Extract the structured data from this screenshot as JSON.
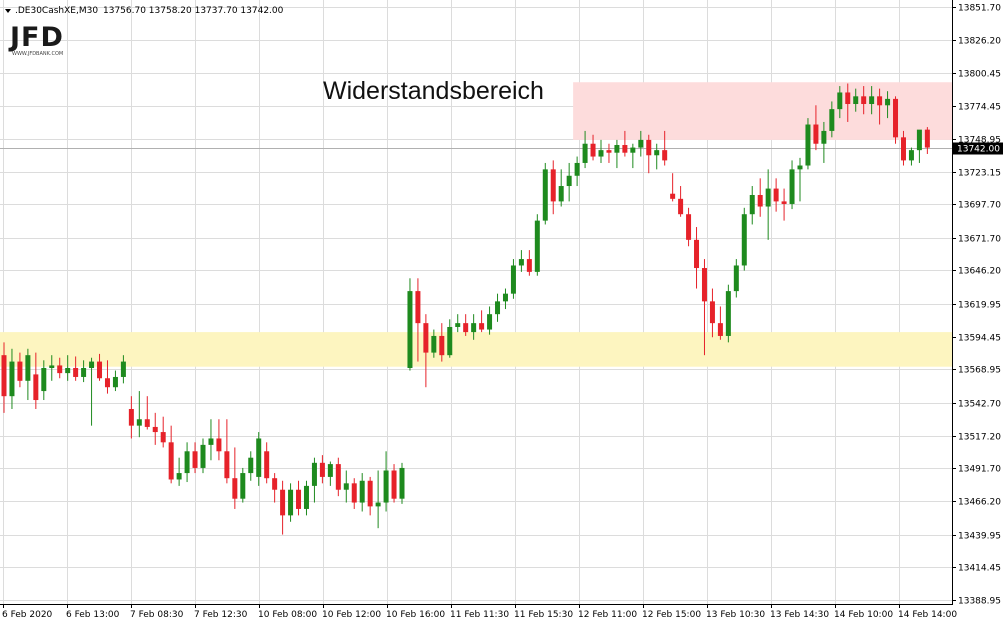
{
  "header": {
    "symbol": ".DE30CashXE,M30",
    "ohlc": "13756.70 13758.20 13737.70 13742.00"
  },
  "logo": {
    "text": "JFD",
    "sub": "WWW.JFDBANK.COM"
  },
  "colors": {
    "bull": "#1e8a1e",
    "bear": "#e6222a",
    "resistance_zone": "#fddcdc",
    "support_zone": "#fdf5c0",
    "grid": "#dcdcdc",
    "price_line": "#b0b0b0",
    "price_tag_bg": "#000000"
  },
  "chart_data": {
    "type": "candlestick",
    "timeframe": "M30",
    "y_range": [
      13380,
      13856
    ],
    "y_ticks": [
      "13851.70",
      "13826.20",
      "13800.45",
      "13774.45",
      "13748.95",
      "13723.15",
      "13697.70",
      "13671.70",
      "13646.20",
      "13619.95",
      "13594.45",
      "13568.95",
      "13542.70",
      "13517.20",
      "13491.70",
      "13466.20",
      "13439.95",
      "13414.45",
      "13388.95"
    ],
    "x_ticks": [
      "6 Feb 2020",
      "6 Feb 13:00",
      "7 Feb 08:30",
      "7 Feb 12:30",
      "10 Feb 08:00",
      "10 Feb 12:00",
      "10 Feb 16:00",
      "11 Feb 11:30",
      "11 Feb 15:30",
      "12 Feb 11:00",
      "12 Feb 15:00",
      "13 Feb 10:30",
      "13 Feb 14:30",
      "14 Feb 10:00",
      "14 Feb 14:00"
    ],
    "current_price": "13742.00",
    "zones": [
      {
        "label": "Widerstandsbereich",
        "from": 13748,
        "to": 13793,
        "start_index": 72,
        "color": "resistance"
      },
      {
        "label": "",
        "from": 13571,
        "to": 13598,
        "start_index": 0,
        "color": "support"
      }
    ],
    "candles": [
      [
        13580,
        13590,
        13535,
        13548
      ],
      [
        13548,
        13585,
        13538,
        13575
      ],
      [
        13575,
        13582,
        13555,
        13560
      ],
      [
        13560,
        13585,
        13545,
        13580
      ],
      [
        13565,
        13582,
        13538,
        13545
      ],
      [
        13552,
        13576,
        13545,
        13570
      ],
      [
        13570,
        13580,
        13560,
        13572
      ],
      [
        13572,
        13578,
        13562,
        13566
      ],
      [
        13566,
        13580,
        13560,
        13570
      ],
      [
        13570,
        13579,
        13560,
        13563
      ],
      [
        13563,
        13576,
        13559,
        13570
      ],
      [
        13570,
        13578,
        13525,
        13575
      ],
      [
        13575,
        13581,
        13560,
        13562
      ],
      [
        13562,
        13576,
        13550,
        13555
      ],
      [
        13555,
        13568,
        13552,
        13563
      ],
      [
        13563,
        13580,
        13558,
        13575
      ],
      [
        13538,
        13548,
        13515,
        13525
      ],
      [
        13525,
        13552,
        13516,
        13530
      ],
      [
        13530,
        13548,
        13522,
        13524
      ],
      [
        13524,
        13535,
        13510,
        13520
      ],
      [
        13520,
        13532,
        13508,
        13512
      ],
      [
        13512,
        13525,
        13480,
        13483
      ],
      [
        13483,
        13500,
        13478,
        13488
      ],
      [
        13488,
        13512,
        13481,
        13505
      ],
      [
        13505,
        13512,
        13488,
        13492
      ],
      [
        13492,
        13515,
        13488,
        13510
      ],
      [
        13510,
        13530,
        13498,
        13515
      ],
      [
        13515,
        13530,
        13498,
        13505
      ],
      [
        13505,
        13530,
        13480,
        13484
      ],
      [
        13484,
        13508,
        13460,
        13468
      ],
      [
        13468,
        13492,
        13465,
        13488
      ],
      [
        13488,
        13505,
        13482,
        13500
      ],
      [
        13485,
        13520,
        13478,
        13515
      ],
      [
        13505,
        13512,
        13480,
        13484
      ],
      [
        13484,
        13488,
        13465,
        13475
      ],
      [
        13475,
        13482,
        13440,
        13455
      ],
      [
        13455,
        13480,
        13450,
        13475
      ],
      [
        13475,
        13482,
        13455,
        13460
      ],
      [
        13460,
        13482,
        13455,
        13478
      ],
      [
        13478,
        13500,
        13465,
        13496
      ],
      [
        13496,
        13502,
        13480,
        13485
      ],
      [
        13485,
        13497,
        13478,
        13495
      ],
      [
        13495,
        13500,
        13470,
        13475
      ],
      [
        13475,
        13490,
        13465,
        13480
      ],
      [
        13480,
        13484,
        13460,
        13465
      ],
      [
        13465,
        13488,
        13458,
        13482
      ],
      [
        13482,
        13485,
        13455,
        13462
      ],
      [
        13462,
        13490,
        13445,
        13465
      ],
      [
        13465,
        13505,
        13458,
        13490
      ],
      [
        13490,
        13495,
        13465,
        13468
      ],
      [
        13468,
        13496,
        13464,
        13492
      ],
      [
        13570,
        13640,
        13568,
        13630
      ],
      [
        13630,
        13640,
        13575,
        13605
      ],
      [
        13605,
        13612,
        13555,
        13582
      ],
      [
        13582,
        13600,
        13578,
        13595
      ],
      [
        13595,
        13605,
        13575,
        13580
      ],
      [
        13580,
        13608,
        13578,
        13602
      ],
      [
        13602,
        13612,
        13598,
        13605
      ],
      [
        13605,
        13612,
        13595,
        13598
      ],
      [
        13598,
        13612,
        13592,
        13605
      ],
      [
        13605,
        13615,
        13598,
        13600
      ],
      [
        13600,
        13618,
        13596,
        13612
      ],
      [
        13612,
        13628,
        13606,
        13622
      ],
      [
        13622,
        13632,
        13616,
        13628
      ],
      [
        13628,
        13655,
        13624,
        13650
      ],
      [
        13650,
        13662,
        13645,
        13655
      ],
      [
        13655,
        13662,
        13642,
        13645
      ],
      [
        13645,
        13690,
        13642,
        13685
      ],
      [
        13685,
        13730,
        13682,
        13725
      ],
      [
        13725,
        13732,
        13690,
        13700
      ],
      [
        13700,
        13725,
        13696,
        13712
      ],
      [
        13712,
        13730,
        13700,
        13720
      ],
      [
        13720,
        13735,
        13712,
        13730
      ],
      [
        13730,
        13755,
        13726,
        13745
      ],
      [
        13745,
        13752,
        13732,
        13735
      ],
      [
        13735,
        13748,
        13730,
        13740
      ],
      [
        13740,
        13745,
        13730,
        13738
      ],
      [
        13738,
        13748,
        13726,
        13744
      ],
      [
        13744,
        13755,
        13735,
        13738
      ],
      [
        13738,
        13745,
        13726,
        13742
      ],
      [
        13742,
        13755,
        13735,
        13748
      ],
      [
        13748,
        13752,
        13722,
        13736
      ],
      [
        13736,
        13745,
        13725,
        13740
      ],
      [
        13740,
        13755,
        13728,
        13732
      ],
      [
        13706,
        13722,
        13700,
        13702
      ],
      [
        13702,
        13712,
        13688,
        13690
      ],
      [
        13690,
        13695,
        13665,
        13670
      ],
      [
        13670,
        13680,
        13632,
        13648
      ],
      [
        13648,
        13655,
        13580,
        13622
      ],
      [
        13622,
        13632,
        13594,
        13605
      ],
      [
        13605,
        13618,
        13592,
        13595
      ],
      [
        13595,
        13635,
        13590,
        13630
      ],
      [
        13630,
        13655,
        13625,
        13650
      ],
      [
        13650,
        13695,
        13646,
        13690
      ],
      [
        13690,
        13712,
        13682,
        13705
      ],
      [
        13705,
        13718,
        13688,
        13696
      ],
      [
        13696,
        13725,
        13670,
        13710
      ],
      [
        13710,
        13718,
        13692,
        13700
      ],
      [
        13700,
        13710,
        13685,
        13698
      ],
      [
        13698,
        13732,
        13694,
        13725
      ],
      [
        13725,
        13734,
        13700,
        13728
      ],
      [
        13728,
        13765,
        13725,
        13760
      ],
      [
        13760,
        13775,
        13740,
        13745
      ],
      [
        13745,
        13762,
        13730,
        13755
      ],
      [
        13755,
        13778,
        13750,
        13772
      ],
      [
        13772,
        13790,
        13765,
        13785
      ],
      [
        13785,
        13792,
        13762,
        13776
      ],
      [
        13776,
        13788,
        13770,
        13782
      ],
      [
        13782,
        13790,
        13768,
        13776
      ],
      [
        13776,
        13790,
        13768,
        13782
      ],
      [
        13782,
        13788,
        13760,
        13775
      ],
      [
        13775,
        13786,
        13765,
        13780
      ],
      [
        13780,
        13782,
        13745,
        13750
      ],
      [
        13750,
        13755,
        13728,
        13732
      ],
      [
        13732,
        13742,
        13728,
        13740
      ],
      [
        13740,
        13755,
        13730,
        13756
      ],
      [
        13756,
        13758,
        13737,
        13742
      ]
    ]
  }
}
